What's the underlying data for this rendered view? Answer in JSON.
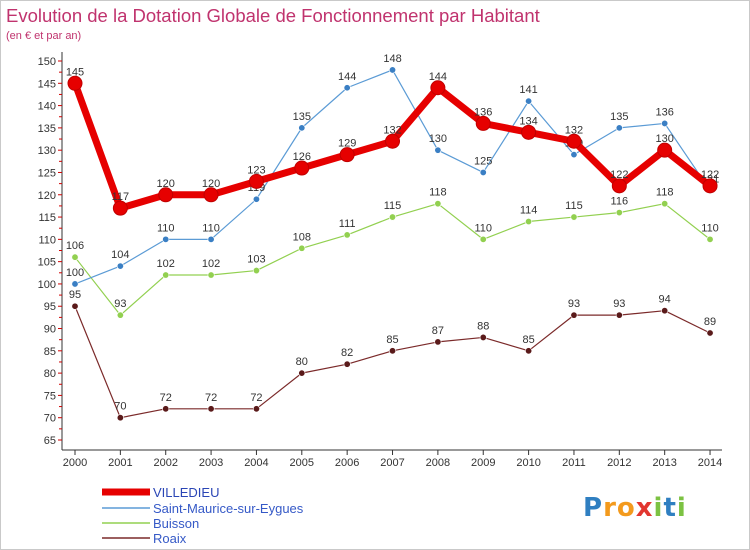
{
  "chart_data": {
    "type": "line",
    "title": "Evolution de la Dotation Globale de Fonctionnement par Habitant",
    "subtitle": "(en € et par an)",
    "x": [
      "2000",
      "2001",
      "2002",
      "2003",
      "2004",
      "2005",
      "2006",
      "2007",
      "2008",
      "2009",
      "2010",
      "2011",
      "2012",
      "2013",
      "2014"
    ],
    "y_ticks": [
      "65",
      "70",
      "75",
      "80",
      "85",
      "90",
      "95",
      "100",
      "105",
      "110",
      "115",
      "120",
      "125",
      "130",
      "135",
      "140",
      "145",
      "150"
    ],
    "ylim": [
      65,
      150
    ],
    "grid": false,
    "legend_position": "bottom-left",
    "series": [
      {
        "name": "VILLEDIEU",
        "color": "#e60000",
        "values": [
          145,
          117,
          120,
          120,
          123,
          126,
          129,
          132,
          144,
          136,
          134,
          132,
          122,
          130,
          122
        ]
      },
      {
        "name": "Saint-Maurice-sur-Eygues",
        "color": "#5b9bd5",
        "values": [
          100,
          104,
          110,
          110,
          119,
          135,
          144,
          148,
          130,
          125,
          141,
          129,
          135,
          136,
          121
        ]
      },
      {
        "name": "Buisson",
        "color": "#92d050",
        "values": [
          106,
          93,
          102,
          102,
          103,
          108,
          111,
          115,
          118,
          110,
          114,
          115,
          116,
          118,
          110
        ]
      },
      {
        "name": "Roaix",
        "color": "#7b2a2a",
        "values": [
          95,
          70,
          72,
          72,
          72,
          80,
          82,
          85,
          87,
          88,
          85,
          93,
          93,
          94,
          89
        ]
      }
    ]
  },
  "logo": {
    "text": "Proxiti"
  }
}
